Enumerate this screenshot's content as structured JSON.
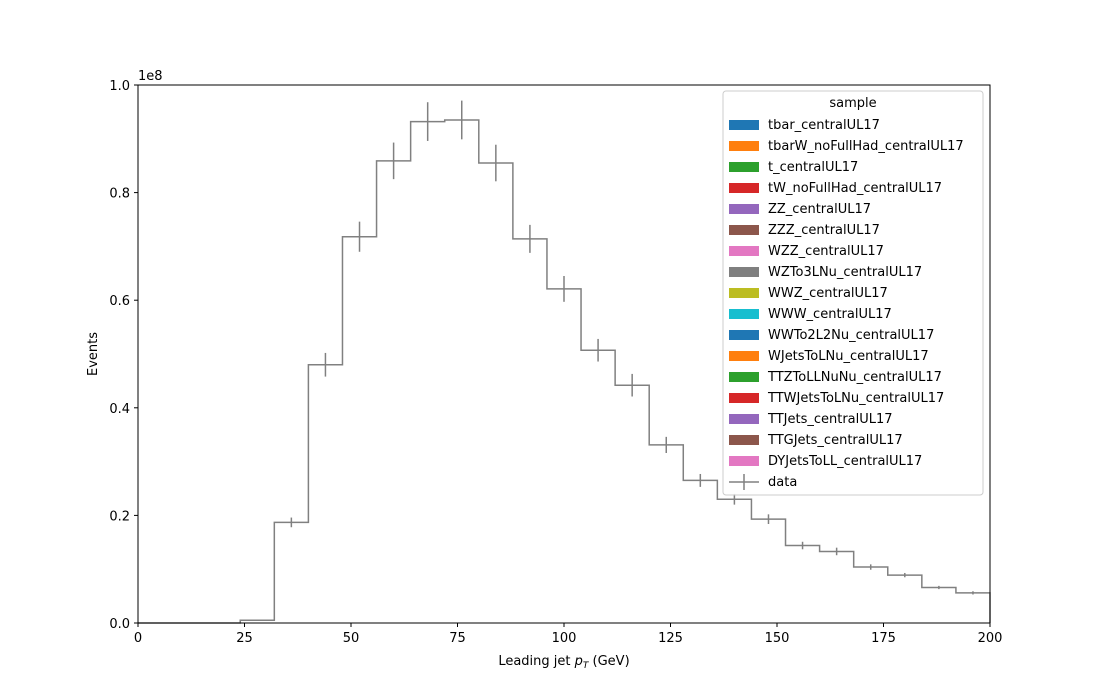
{
  "chart_data": {
    "type": "histogram",
    "xlabel_main": "Leading jet  ",
    "xlabel_symbol": "p",
    "xlabel_sub": "T",
    "xlabel_unit": " (GeV)",
    "ylabel": "Events",
    "y_multiplier": "1e8",
    "xlim": [
      0,
      200
    ],
    "ylim": [
      0,
      1.0
    ],
    "x_ticks": [
      "0",
      "25",
      "50",
      "75",
      "100",
      "125",
      "150",
      "175",
      "200"
    ],
    "y_ticks": [
      "0.0",
      "0.2",
      "0.4",
      "0.6",
      "0.8",
      "1.0"
    ],
    "bin_edges": [
      0,
      8,
      16,
      24,
      32,
      40,
      48,
      56,
      64,
      72,
      80,
      88,
      96,
      104,
      112,
      120,
      128,
      136,
      144,
      152,
      160,
      168,
      176,
      184,
      192,
      200
    ],
    "values": [
      0,
      0,
      0,
      0.005,
      0.187,
      0.48,
      0.718,
      0.859,
      0.932,
      0.935,
      0.855,
      0.714,
      0.621,
      0.507,
      0.442,
      0.331,
      0.265,
      0.23,
      0.193,
      0.144,
      0.133,
      0.104,
      0.089,
      0.066,
      0.056
    ],
    "errors": [
      0,
      0,
      0,
      0,
      0.009,
      0.022,
      0.028,
      0.034,
      0.036,
      0.036,
      0.034,
      0.026,
      0.024,
      0.021,
      0.021,
      0.015,
      0.012,
      0.01,
      0.009,
      0.007,
      0.007,
      0.005,
      0.004,
      0.003,
      0.003
    ],
    "data_color": "#808080",
    "legend": {
      "title": "sample",
      "placement": "top-right",
      "entries": [
        {
          "label": "tbar_centralUL17",
          "color": "#1f77b4"
        },
        {
          "label": "tbarW_noFullHad_centralUL17",
          "color": "#ff7f0e"
        },
        {
          "label": "t_centralUL17",
          "color": "#2ca02c"
        },
        {
          "label": "tW_noFullHad_centralUL17",
          "color": "#d62728"
        },
        {
          "label": "ZZ_centralUL17",
          "color": "#9467bd"
        },
        {
          "label": "ZZZ_centralUL17",
          "color": "#8c564b"
        },
        {
          "label": "WZZ_centralUL17",
          "color": "#e377c2"
        },
        {
          "label": "WZTo3LNu_centralUL17",
          "color": "#7f7f7f"
        },
        {
          "label": "WWZ_centralUL17",
          "color": "#bcbd22"
        },
        {
          "label": "WWW_centralUL17",
          "color": "#17becf"
        },
        {
          "label": "WWTo2L2Nu_centralUL17",
          "color": "#1f77b4"
        },
        {
          "label": "WJetsToLNu_centralUL17",
          "color": "#ff7f0e"
        },
        {
          "label": "TTZToLLNuNu_centralUL17",
          "color": "#2ca02c"
        },
        {
          "label": "TTWJetsToLNu_centralUL17",
          "color": "#d62728"
        },
        {
          "label": "TTJets_centralUL17",
          "color": "#9467bd"
        },
        {
          "label": "TTGJets_centralUL17",
          "color": "#8c564b"
        },
        {
          "label": "DYJetsToLL_centralUL17",
          "color": "#e377c2"
        }
      ],
      "data_label": "data"
    }
  }
}
